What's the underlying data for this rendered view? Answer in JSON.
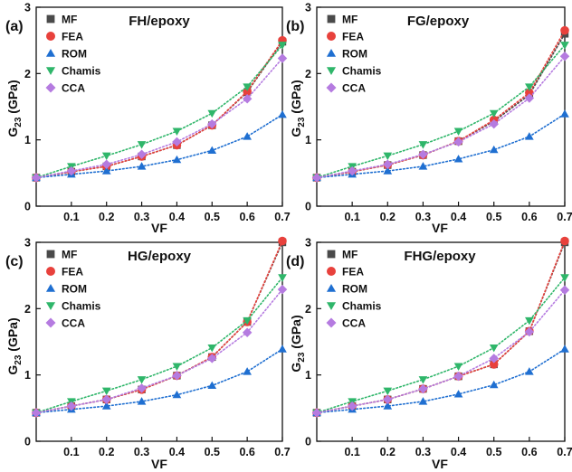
{
  "chart_data": [
    {
      "type": "line",
      "panel_label": "(a)",
      "title": "FH/epoxy",
      "xlabel": "VF",
      "ylabel": "G23 (GPa)",
      "ylabel_main": "G",
      "ylabel_sub": "23",
      "ylabel_unit": " (GPa)",
      "xlim": [
        0,
        0.7
      ],
      "ylim": [
        0,
        3
      ],
      "xticks": [
        0.1,
        0.2,
        0.3,
        0.4,
        0.5,
        0.6,
        0.7
      ],
      "xtick_labels": [
        "0.1",
        "0.2",
        "0.3",
        "0.4",
        "0.5",
        "0.6",
        "0.7"
      ],
      "yticks": [
        0,
        1,
        2,
        3
      ],
      "ytick_labels": [
        "0",
        "1",
        "2",
        "3"
      ],
      "legend_position": "top-left",
      "x": [
        0,
        0.1,
        0.2,
        0.3,
        0.4,
        0.5,
        0.6,
        0.7
      ],
      "series": [
        {
          "name": "MF",
          "color": "#4a4a4a",
          "marker": "square",
          "values": [
            0.43,
            0.52,
            0.6,
            0.75,
            0.92,
            1.22,
            1.72,
            2.48
          ]
        },
        {
          "name": "FEA",
          "color": "#e8413c",
          "marker": "circle",
          "values": [
            0.43,
            0.52,
            0.6,
            0.75,
            0.92,
            1.22,
            1.73,
            2.5
          ]
        },
        {
          "name": "ROM",
          "color": "#1f6fd1",
          "marker": "triangle-up",
          "values": [
            0.43,
            0.48,
            0.53,
            0.6,
            0.7,
            0.84,
            1.05,
            1.38
          ]
        },
        {
          "name": "Chamis",
          "color": "#2fb66a",
          "marker": "triangle-down",
          "values": [
            0.43,
            0.6,
            0.76,
            0.93,
            1.13,
            1.4,
            1.8,
            2.43
          ]
        },
        {
          "name": "CCA",
          "color": "#b57be0",
          "marker": "diamond",
          "values": [
            0.43,
            0.53,
            0.63,
            0.78,
            0.97,
            1.24,
            1.62,
            2.23
          ]
        }
      ]
    },
    {
      "type": "line",
      "panel_label": "(b)",
      "title": "FG/epoxy",
      "xlabel": "VF",
      "ylabel": "G23 (GPa)",
      "ylabel_main": "G",
      "ylabel_sub": "23",
      "ylabel_unit": " (GPa)",
      "xlim": [
        0,
        0.7
      ],
      "ylim": [
        0,
        3
      ],
      "xticks": [
        0.1,
        0.2,
        0.3,
        0.4,
        0.5,
        0.6,
        0.7
      ],
      "xtick_labels": [
        "0.1",
        "0.2",
        "0.3",
        "0.4",
        "0.5",
        "0.6",
        "0.7"
      ],
      "yticks": [
        0,
        1,
        2,
        3
      ],
      "ytick_labels": [
        "0",
        "1",
        "2",
        "3"
      ],
      "legend_position": "top-left",
      "x": [
        0,
        0.1,
        0.2,
        0.3,
        0.4,
        0.5,
        0.6,
        0.7
      ],
      "series": [
        {
          "name": "MF",
          "color": "#4a4a4a",
          "marker": "square",
          "values": [
            0.43,
            0.52,
            0.62,
            0.77,
            0.98,
            1.28,
            1.68,
            2.6
          ]
        },
        {
          "name": "FEA",
          "color": "#e8413c",
          "marker": "circle",
          "values": [
            0.43,
            0.52,
            0.62,
            0.77,
            0.98,
            1.3,
            1.71,
            2.65
          ]
        },
        {
          "name": "ROM",
          "color": "#1f6fd1",
          "marker": "triangle-up",
          "values": [
            0.43,
            0.48,
            0.53,
            0.6,
            0.71,
            0.85,
            1.05,
            1.39
          ]
        },
        {
          "name": "Chamis",
          "color": "#2fb66a",
          "marker": "triangle-down",
          "values": [
            0.43,
            0.6,
            0.76,
            0.93,
            1.13,
            1.4,
            1.8,
            2.43
          ]
        },
        {
          "name": "CCA",
          "color": "#b57be0",
          "marker": "diamond",
          "values": [
            0.43,
            0.53,
            0.63,
            0.78,
            0.97,
            1.24,
            1.63,
            2.26
          ]
        }
      ]
    },
    {
      "type": "line",
      "panel_label": "(c)",
      "title": "HG/epoxy",
      "xlabel": "VF",
      "ylabel": "G23 (GPa)",
      "ylabel_main": "G",
      "ylabel_sub": "23",
      "ylabel_unit": " (GPa)",
      "xlim": [
        0,
        0.7
      ],
      "ylim": [
        0,
        3
      ],
      "xticks": [
        0.1,
        0.2,
        0.3,
        0.4,
        0.5,
        0.6,
        0.7
      ],
      "xtick_labels": [
        "0.1",
        "0.2",
        "0.3",
        "0.4",
        "0.5",
        "0.6",
        "0.7"
      ],
      "yticks": [
        0,
        1,
        2,
        3
      ],
      "ytick_labels": [
        "0",
        "1",
        "2",
        "3"
      ],
      "legend_position": "top-left",
      "x": [
        0,
        0.1,
        0.2,
        0.3,
        0.4,
        0.5,
        0.6,
        0.7
      ],
      "series": [
        {
          "name": "MF",
          "color": "#4a4a4a",
          "marker": "square",
          "values": [
            0.43,
            0.53,
            0.63,
            0.78,
            0.99,
            1.27,
            1.8,
            3.0
          ]
        },
        {
          "name": "FEA",
          "color": "#e8413c",
          "marker": "circle",
          "values": [
            0.43,
            0.53,
            0.63,
            0.78,
            0.99,
            1.27,
            1.8,
            3.02
          ]
        },
        {
          "name": "ROM",
          "color": "#1f6fd1",
          "marker": "triangle-up",
          "values": [
            0.43,
            0.48,
            0.53,
            0.6,
            0.7,
            0.84,
            1.05,
            1.39
          ]
        },
        {
          "name": "Chamis",
          "color": "#2fb66a",
          "marker": "triangle-down",
          "values": [
            0.43,
            0.6,
            0.76,
            0.93,
            1.13,
            1.41,
            1.82,
            2.47
          ]
        },
        {
          "name": "CCA",
          "color": "#b57be0",
          "marker": "diamond",
          "values": [
            0.43,
            0.53,
            0.63,
            0.8,
            0.99,
            1.25,
            1.64,
            2.29
          ]
        }
      ]
    },
    {
      "type": "line",
      "panel_label": "(d)",
      "title": "FHG/epoxy",
      "xlabel": "VF",
      "ylabel": "G23 (GPa)",
      "ylabel_main": "G",
      "ylabel_sub": "23",
      "ylabel_unit": " (GPa)",
      "xlim": [
        0,
        0.7
      ],
      "ylim": [
        0,
        3
      ],
      "xticks": [
        0.1,
        0.2,
        0.3,
        0.4,
        0.5,
        0.6,
        0.7
      ],
      "xtick_labels": [
        "0.1",
        "0.2",
        "0.3",
        "0.4",
        "0.5",
        "0.6",
        "0.7"
      ],
      "yticks": [
        0,
        1,
        2,
        3
      ],
      "ytick_labels": [
        "0",
        "1",
        "2",
        "3"
      ],
      "legend_position": "top-left",
      "x": [
        0,
        0.1,
        0.2,
        0.3,
        0.4,
        0.5,
        0.6,
        0.7
      ],
      "series": [
        {
          "name": "MF",
          "color": "#4a4a4a",
          "marker": "square",
          "values": [
            0.43,
            0.53,
            0.63,
            0.79,
            0.98,
            1.16,
            1.66,
            3.0
          ]
        },
        {
          "name": "FEA",
          "color": "#e8413c",
          "marker": "circle",
          "values": [
            0.43,
            0.53,
            0.63,
            0.79,
            0.98,
            1.16,
            1.66,
            3.02
          ]
        },
        {
          "name": "ROM",
          "color": "#1f6fd1",
          "marker": "triangle-up",
          "values": [
            0.43,
            0.48,
            0.53,
            0.6,
            0.71,
            0.85,
            1.05,
            1.39
          ]
        },
        {
          "name": "Chamis",
          "color": "#2fb66a",
          "marker": "triangle-down",
          "values": [
            0.43,
            0.6,
            0.76,
            0.93,
            1.13,
            1.41,
            1.82,
            2.47
          ]
        },
        {
          "name": "CCA",
          "color": "#b57be0",
          "marker": "diamond",
          "values": [
            0.43,
            0.53,
            0.63,
            0.79,
            0.98,
            1.25,
            1.65,
            2.28
          ]
        }
      ]
    }
  ]
}
